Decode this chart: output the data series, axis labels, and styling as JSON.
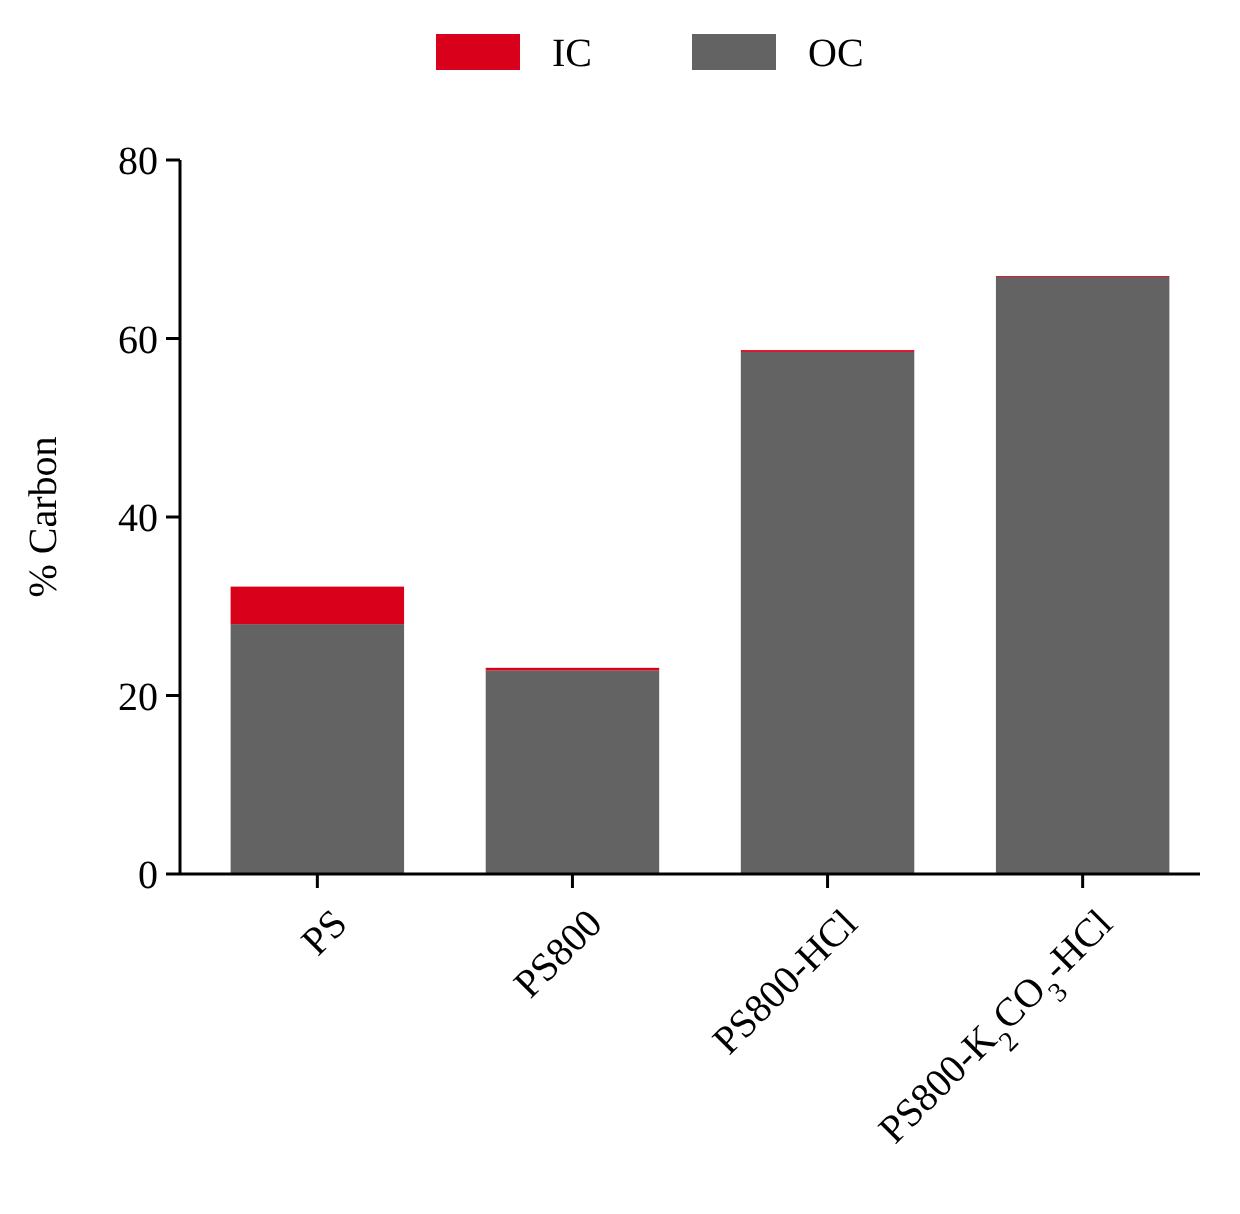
{
  "chart_data": {
    "type": "bar",
    "ylabel": "% Carbon",
    "categories": [
      "PS",
      "PS800",
      "PS800-HCl",
      "PS800-K$_{2}$CO$_{3}$-HCl"
    ],
    "stacked": true,
    "ylim": [
      0,
      80
    ],
    "yticks": [
      0,
      20,
      40,
      60,
      80
    ],
    "legend": "top",
    "series": [
      {
        "name": "OC",
        "color": "#636363",
        "values": [
          28.0,
          22.8,
          58.5,
          66.9
        ]
      },
      {
        "name": "IC",
        "color": "#d9001b",
        "values": [
          4.2,
          0.3,
          0.2,
          0.1
        ]
      }
    ]
  }
}
